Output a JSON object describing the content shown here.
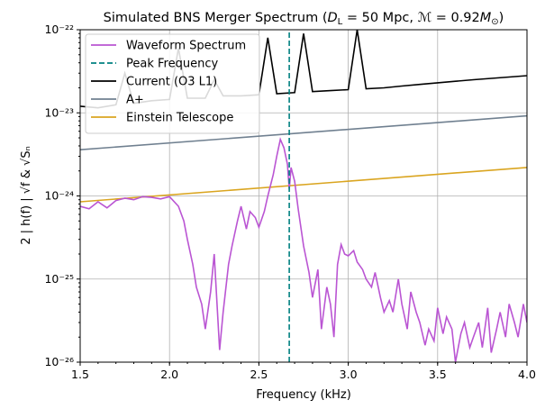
{
  "chart_data": {
    "type": "line",
    "title": "Simulated BNS Merger Spectrum (D_L = 50 Mpc, ℳ = 0.92M☉)",
    "title_parts": {
      "prefix": "Simulated BNS Merger Spectrum (",
      "dl": "D",
      "dl_sub": "L",
      "dl_value": " = 50 Mpc, ",
      "chirp": "ℳ",
      "chirp_value": " = 0.92",
      "mass": "M",
      "mass_sub": "⊙",
      "suffix": ")"
    },
    "xlabel": "Frequency (kHz)",
    "ylabel": "2 | h(f) | √f & √Sₙ",
    "xlim": [
      1.5,
      4.0
    ],
    "ylim": [
      1e-26,
      1e-22
    ],
    "yscale": "log",
    "grid": true,
    "legend_position": "upper left",
    "x_ticks": [
      1.5,
      2.0,
      2.5,
      3.0,
      3.5,
      4.0
    ],
    "x_tick_labels": [
      "1.5",
      "2.0",
      "2.5",
      "3.0",
      "3.5",
      "4.0"
    ],
    "y_ticks": [
      -26,
      -25,
      -24,
      -23,
      -22
    ],
    "y_tick_labels": [
      "10⁻²⁶",
      "10⁻²⁵",
      "10⁻²⁴",
      "10⁻²³",
      "10⁻²²"
    ],
    "series": [
      {
        "name": "Waveform Spectrum",
        "color": "#ba55d3",
        "x": [
          1.5,
          1.55,
          1.6,
          1.65,
          1.7,
          1.75,
          1.8,
          1.85,
          1.9,
          1.95,
          2.0,
          2.05,
          2.08,
          2.1,
          2.13,
          2.15,
          2.18,
          2.2,
          2.23,
          2.25,
          2.28,
          2.3,
          2.33,
          2.35,
          2.38,
          2.4,
          2.43,
          2.45,
          2.48,
          2.5,
          2.53,
          2.55,
          2.58,
          2.6,
          2.62,
          2.64,
          2.66,
          2.67,
          2.68,
          2.7,
          2.72,
          2.75,
          2.78,
          2.8,
          2.83,
          2.85,
          2.88,
          2.9,
          2.92,
          2.94,
          2.96,
          2.98,
          3.0,
          3.03,
          3.05,
          3.08,
          3.1,
          3.13,
          3.15,
          3.18,
          3.2,
          3.23,
          3.25,
          3.28,
          3.3,
          3.33,
          3.35,
          3.38,
          3.4,
          3.43,
          3.45,
          3.48,
          3.5,
          3.53,
          3.55,
          3.58,
          3.6,
          3.63,
          3.65,
          3.68,
          3.7,
          3.73,
          3.75,
          3.78,
          3.8,
          3.83,
          3.85,
          3.88,
          3.9,
          3.93,
          3.95,
          3.98,
          4.0
        ],
        "y": [
          7.5e-25,
          7e-25,
          8.5e-25,
          7.2e-25,
          8.8e-25,
          9.4e-25,
          9e-25,
          9.8e-25,
          9.6e-25,
          9.2e-25,
          9.8e-25,
          7.5e-25,
          5e-25,
          3e-25,
          1.5e-25,
          8e-26,
          5e-26,
          2.5e-26,
          7e-26,
          2e-25,
          1.4e-26,
          4e-26,
          1.5e-25,
          2.5e-25,
          5e-25,
          7.5e-25,
          4e-25,
          6.5e-25,
          5.5e-25,
          4.2e-25,
          6.5e-25,
          1e-24,
          1.8e-24,
          3e-24,
          4.8e-24,
          3.8e-24,
          2.4e-24,
          1.2e-24,
          2.2e-24,
          1.5e-24,
          7e-25,
          2.5e-25,
          1.2e-25,
          6e-26,
          1.3e-25,
          2.5e-26,
          8e-26,
          5e-26,
          2e-26,
          1.5e-25,
          2.6e-25,
          2e-25,
          1.9e-25,
          2.2e-25,
          1.6e-25,
          1.3e-25,
          1e-25,
          8e-26,
          1.2e-25,
          6e-26,
          4e-26,
          5.5e-26,
          4e-26,
          1e-25,
          5e-26,
          2.5e-26,
          7e-26,
          4e-26,
          3e-26,
          1.6e-26,
          2.5e-26,
          1.8e-26,
          4.5e-26,
          2.2e-26,
          3.5e-26,
          2.5e-26,
          1e-26,
          2.2e-26,
          3e-26,
          1.5e-26,
          2e-26,
          3e-26,
          1.5e-26,
          4.5e-26,
          1.3e-26,
          2.5e-26,
          4e-26,
          2e-26,
          5e-26,
          3e-26,
          2e-26,
          5e-26,
          3e-26
        ]
      },
      {
        "name": "Peak Frequency",
        "color": "#008080",
        "style": "dashed",
        "x": [
          2.67,
          2.67
        ],
        "y": [
          1e-26,
          1e-22
        ]
      },
      {
        "name": "Current (O3 L1)",
        "color": "#000000",
        "x": [
          1.5,
          1.6,
          1.7,
          1.75,
          1.8,
          1.9,
          2.0,
          2.05,
          2.1,
          2.2,
          2.25,
          2.3,
          2.4,
          2.5,
          2.55,
          2.6,
          2.7,
          2.75,
          2.8,
          2.9,
          3.0,
          3.05,
          3.1,
          3.2,
          3.3,
          3.4,
          3.5,
          3.6,
          3.7,
          3.8,
          3.9,
          4.0
        ],
        "y": [
          1.2e-23,
          1.15e-23,
          1.25e-23,
          3e-23,
          1.3e-23,
          1.4e-23,
          1.45e-23,
          6e-23,
          1.5e-23,
          1.5e-23,
          2.5e-23,
          1.6e-23,
          1.6e-23,
          1.65e-23,
          8e-23,
          1.7e-23,
          1.75e-23,
          9e-23,
          1.8e-23,
          1.85e-23,
          1.9e-23,
          1e-22,
          1.95e-23,
          2e-23,
          2.1e-23,
          2.2e-23,
          2.3e-23,
          2.4e-23,
          2.5e-23,
          2.6e-23,
          2.7e-23,
          2.8e-23
        ]
      },
      {
        "name": "A+",
        "color": "#708090",
        "x": [
          1.5,
          4.0
        ],
        "y": [
          3.6e-24,
          9.2e-24
        ]
      },
      {
        "name": "Einstein Telescope",
        "color": "#daa520",
        "x": [
          1.5,
          4.0
        ],
        "y": [
          8.5e-25,
          2.2e-24
        ]
      }
    ]
  }
}
